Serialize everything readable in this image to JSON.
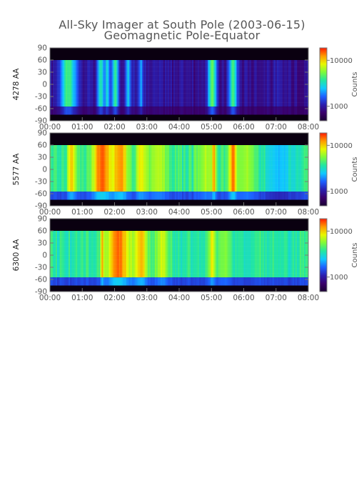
{
  "title": "All-Sky Imager at South Pole (2003-06-15)",
  "subtitle": "Geomagnetic Pole-Equator",
  "colors": {
    "colormap": [
      "#1a0033",
      "#3a006b",
      "#2a1fb0",
      "#1d60ff",
      "#10c8ff",
      "#22e6a0",
      "#7dfa3a",
      "#e8f800",
      "#ff9a00",
      "#ff1a00"
    ]
  },
  "chart_data": [
    {
      "type": "heatmap",
      "ylabel": "4278 AA",
      "colorbar_label": "Counts",
      "colorbar_ticks": [
        "10000",
        "1000"
      ],
      "x_ticks": [
        "00:00",
        "01:00",
        "02:00",
        "03:00",
        "04:00",
        "05:00",
        "06:00",
        "07:00",
        "08:00"
      ],
      "y_ticks": [
        "90",
        "60",
        "30",
        "0",
        "-30",
        "-60",
        "-90"
      ],
      "xlim_hours": [
        0,
        8
      ],
      "ylim": [
        -90,
        90
      ],
      "log_color_scale": true,
      "background_level": 0.18,
      "features": [
        {
          "t": 0.55,
          "w": 0.25,
          "v": 0.6
        },
        {
          "t": 1.55,
          "w": 0.1,
          "v": 0.55
        },
        {
          "t": 1.75,
          "w": 0.08,
          "v": 0.5
        },
        {
          "t": 2.0,
          "w": 0.1,
          "v": 0.55
        },
        {
          "t": 2.4,
          "w": 0.1,
          "v": 0.45
        },
        {
          "t": 2.8,
          "w": 0.08,
          "v": 0.4
        },
        {
          "t": 5.0,
          "w": 0.12,
          "v": 0.65
        },
        {
          "t": 5.65,
          "w": 0.12,
          "v": 0.6
        }
      ]
    },
    {
      "type": "heatmap",
      "ylabel": "5577 AA",
      "colorbar_label": "Counts",
      "colorbar_ticks": [
        "10000",
        "1000"
      ],
      "x_ticks": [
        "00:00",
        "01:00",
        "02:00",
        "03:00",
        "04:00",
        "05:00",
        "06:00",
        "07:00",
        "08:00"
      ],
      "y_ticks": [
        "90",
        "60",
        "30",
        "0",
        "-30",
        "-60",
        "-90"
      ],
      "xlim_hours": [
        0,
        8
      ],
      "ylim": [
        -90,
        90
      ],
      "log_color_scale": true,
      "background_level": 0.58,
      "features": [
        {
          "t": 0.65,
          "w": 0.12,
          "v": 0.85
        },
        {
          "t": 1.6,
          "w": 0.3,
          "v": 0.95
        },
        {
          "t": 2.15,
          "w": 0.25,
          "v": 0.9
        },
        {
          "t": 2.8,
          "w": 0.15,
          "v": 0.8
        },
        {
          "t": 3.3,
          "w": 0.35,
          "v": 0.72
        },
        {
          "t": 4.8,
          "w": 0.25,
          "v": 0.72
        },
        {
          "t": 5.05,
          "w": 0.06,
          "v": 0.92
        },
        {
          "t": 5.65,
          "w": 0.12,
          "v": 0.95
        },
        {
          "t": 6.1,
          "w": 0.25,
          "v": 0.7
        },
        {
          "t": 7.1,
          "w": 0.5,
          "v": 0.45
        }
      ]
    },
    {
      "type": "heatmap",
      "ylabel": "6300 AA",
      "colorbar_label": "Counts",
      "colorbar_ticks": [
        "10000",
        "1000"
      ],
      "x_ticks": [
        "00:00",
        "01:00",
        "02:00",
        "03:00",
        "04:00",
        "05:00",
        "06:00",
        "07:00",
        "08:00"
      ],
      "y_ticks": [
        "90",
        "60",
        "30",
        "0",
        "-30",
        "-60",
        "-90"
      ],
      "xlim_hours": [
        0,
        8
      ],
      "ylim": [
        -90,
        90
      ],
      "log_color_scale": true,
      "background_level": 0.55,
      "features": [
        {
          "t": 1.6,
          "w": 0.05,
          "v": 0.9
        },
        {
          "t": 2.1,
          "w": 0.4,
          "v": 0.92
        },
        {
          "t": 2.8,
          "w": 0.2,
          "v": 0.85
        },
        {
          "t": 3.45,
          "w": 0.2,
          "v": 0.75
        },
        {
          "t": 5.0,
          "w": 0.1,
          "v": 0.78
        },
        {
          "t": 5.35,
          "w": 0.2,
          "v": 0.68
        }
      ]
    }
  ]
}
